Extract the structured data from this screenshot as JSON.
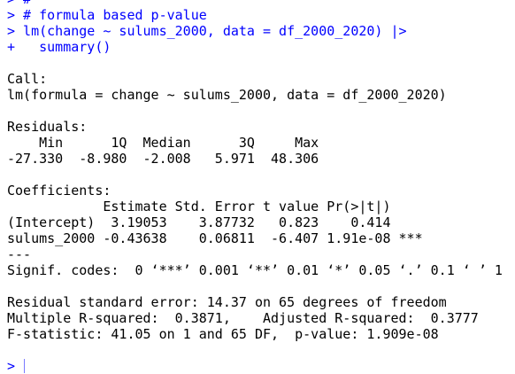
{
  "commands": [
    "> #",
    "> # formula based p-value",
    "> lm(change ~ sulums_2000, data = df_2000_2020) |>",
    "+   summary()"
  ],
  "output": {
    "call_header": "Call:",
    "call": "lm(formula = change ~ sulums_2000, data = df_2000_2020)",
    "residuals_header": "Residuals:",
    "residuals_labels": "    Min      1Q  Median      3Q     Max ",
    "residuals_values": "-27.330  -8.980  -2.008   5.971  48.306 ",
    "coefficients_header": "Coefficients:",
    "coefficients_columns": "            Estimate Std. Error t value Pr(>|t|)    ",
    "coefficients_rows": [
      "(Intercept)  3.19053    3.87732   0.823    0.414    ",
      "sulums_2000 -0.43638    0.06811  -6.407 1.91e-08 ***"
    ],
    "separator": "---",
    "signif_codes": "Signif. codes:  0 ‘***’ 0.001 ‘**’ 0.01 ‘*’ 0.05 ‘.’ 0.1 ‘ ’ 1",
    "summary_lines": [
      "Residual standard error: 14.37 on 65 degrees of freedom",
      "Multiple R-squared:  0.3871,\tAdjusted R-squared:  0.3777 ",
      "F-statistic: 41.05 on 1 and 65 DF,  p-value: 1.909e-08"
    ]
  },
  "prompt": "> "
}
